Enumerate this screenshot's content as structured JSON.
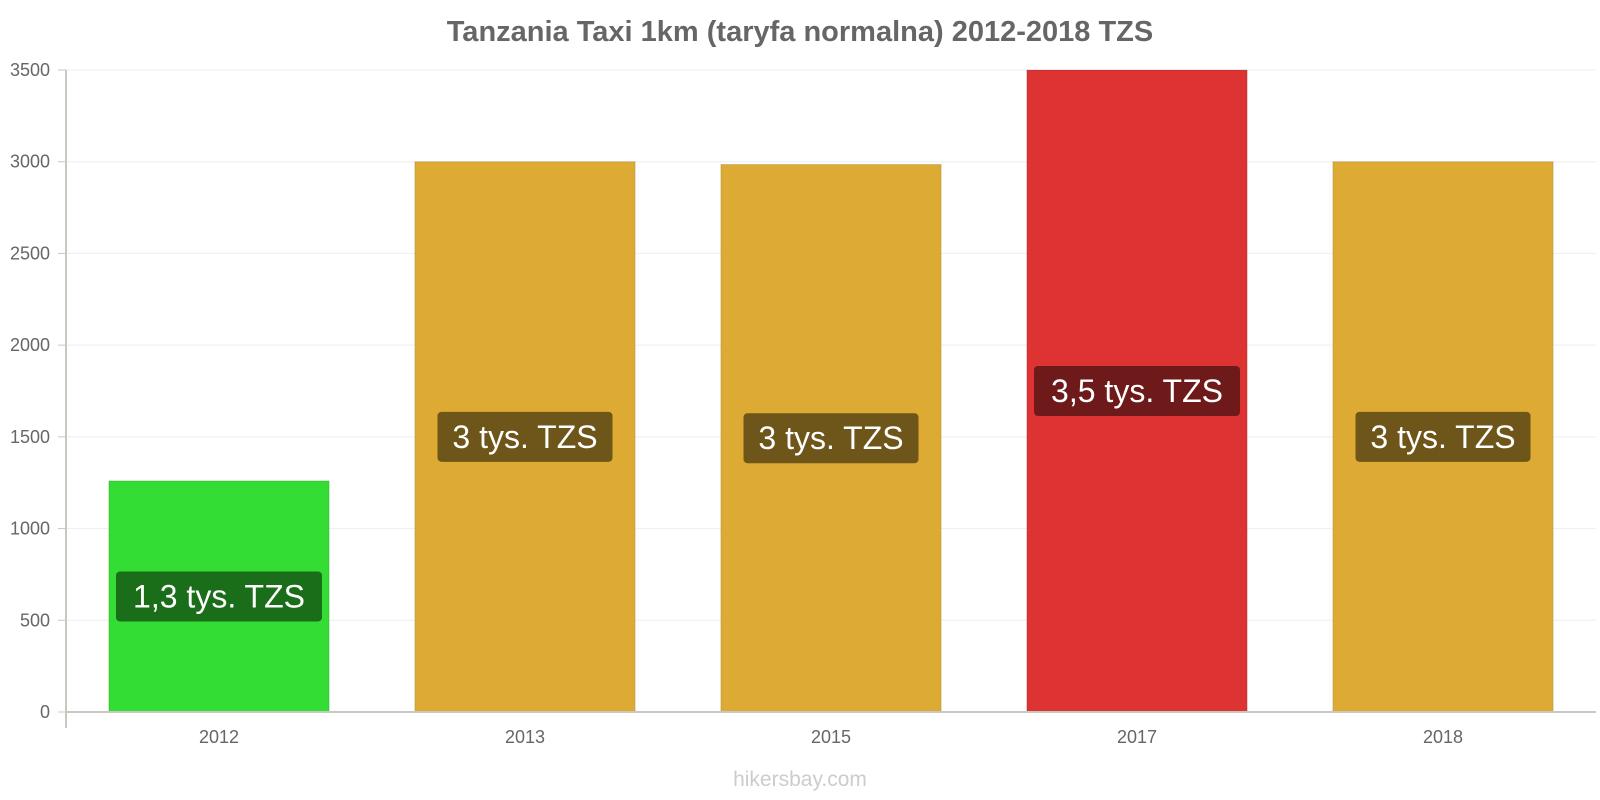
{
  "chart_data": {
    "type": "bar",
    "title": "Tanzania Taxi 1km (taryfa normalna) 2012-2018 TZS",
    "categories": [
      "2012",
      "2013",
      "2015",
      "2017",
      "2018"
    ],
    "values": [
      1260,
      3000,
      2985,
      3500,
      3000
    ],
    "data_labels": [
      "1,3 tys. TZS",
      "3 tys. TZS",
      "3 tys. TZS",
      "3,5 tys. TZS",
      "3 tys. TZS"
    ],
    "bar_colors": [
      "#33dd33",
      "#ddaa33",
      "#ddaa33",
      "#dd3333",
      "#ddaa33"
    ],
    "label_bg_colors": [
      "#1a6e1a",
      "#6e551a",
      "#6e551a",
      "#6e1a1a",
      "#6e551a"
    ],
    "y_ticks": [
      0,
      500,
      1000,
      1500,
      2000,
      2500,
      3000,
      3500
    ],
    "ylim": [
      0,
      3500
    ],
    "xlabel": "",
    "ylabel": "",
    "grid": true
  },
  "watermark": "hikersbay.com"
}
